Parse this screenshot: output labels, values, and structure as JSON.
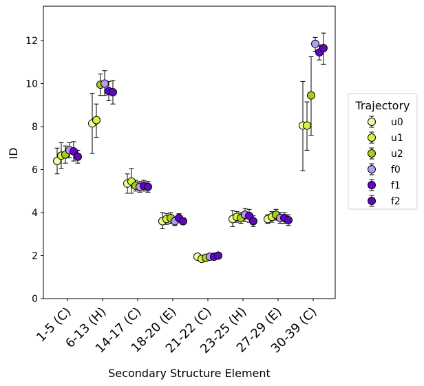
{
  "chart_data": {
    "type": "scatter",
    "title": "",
    "xlabel": "Secondary Structure Element",
    "ylabel": "ID",
    "ylim": [
      0,
      13.6
    ],
    "yticks": [
      0,
      2,
      4,
      6,
      8,
      10,
      12
    ],
    "categories": [
      "1-5 (C)",
      "6-13 (H)",
      "14-17 (C)",
      "18-20 (E)",
      "21-22 (C)",
      "23-25 (H)",
      "27-29 (E)",
      "30-39 (C)"
    ],
    "legend": {
      "title": "Trajectory",
      "placement": "outside-right"
    },
    "series": [
      {
        "name": "u0",
        "color": "#f2fca8",
        "values": [
          6.4,
          8.15,
          5.35,
          3.6,
          1.95,
          3.7,
          3.7,
          8.05
        ],
        "errors": [
          [
            5.8,
            7.0
          ],
          [
            6.75,
            9.55
          ],
          [
            4.9,
            5.8
          ],
          [
            3.25,
            4.0
          ],
          [
            1.85,
            2.05
          ],
          [
            3.35,
            4.1
          ],
          [
            3.5,
            3.9
          ],
          [
            5.95,
            10.1
          ]
        ]
      },
      {
        "name": "u1",
        "color": "#d4f53a",
        "values": [
          6.65,
          8.3,
          5.45,
          3.7,
          1.85,
          3.8,
          3.8,
          8.05
        ],
        "errors": [
          [
            6.05,
            7.25
          ],
          [
            7.5,
            9.05
          ],
          [
            4.9,
            6.05
          ],
          [
            3.45,
            3.95
          ],
          [
            1.75,
            1.95
          ],
          [
            3.55,
            4.05
          ],
          [
            3.55,
            4.05
          ],
          [
            6.9,
            9.15
          ]
        ]
      },
      {
        "name": "u2",
        "color": "#a8cc1a",
        "values": [
          6.7,
          9.95,
          5.25,
          3.75,
          1.9,
          3.75,
          3.9,
          9.45
        ],
        "errors": [
          [
            6.3,
            7.1
          ],
          [
            9.45,
            10.45
          ],
          [
            5.0,
            5.5
          ],
          [
            3.5,
            4.0
          ],
          [
            1.8,
            2.0
          ],
          [
            3.5,
            4.0
          ],
          [
            3.65,
            4.15
          ],
          [
            7.6,
            11.25
          ]
        ]
      },
      {
        "name": "f0",
        "color": "#b69af0",
        "values": [
          6.9,
          10.0,
          5.2,
          3.6,
          1.95,
          3.9,
          3.75,
          11.85
        ],
        "errors": [
          [
            6.55,
            7.25
          ],
          [
            9.45,
            10.6
          ],
          [
            4.95,
            5.45
          ],
          [
            3.4,
            3.8
          ],
          [
            1.85,
            2.05
          ],
          [
            3.6,
            4.2
          ],
          [
            3.5,
            4.0
          ],
          [
            11.5,
            12.15
          ]
        ]
      },
      {
        "name": "f1",
        "color": "#6600d6",
        "values": [
          6.85,
          9.65,
          5.25,
          3.75,
          1.95,
          3.85,
          3.75,
          11.45
        ],
        "errors": [
          [
            6.4,
            7.3
          ],
          [
            9.2,
            10.1
          ],
          [
            5.0,
            5.5
          ],
          [
            3.55,
            3.95
          ],
          [
            1.85,
            2.05
          ],
          [
            3.55,
            4.15
          ],
          [
            3.5,
            4.0
          ],
          [
            11.1,
            11.8
          ]
        ]
      },
      {
        "name": "f2",
        "color": "#5c0ab8",
        "values": [
          6.6,
          9.6,
          5.2,
          3.6,
          2.0,
          3.6,
          3.65,
          11.65
        ],
        "errors": [
          [
            6.3,
            6.9
          ],
          [
            9.05,
            10.15
          ],
          [
            4.95,
            5.45
          ],
          [
            3.45,
            3.75
          ],
          [
            1.9,
            2.1
          ],
          [
            3.35,
            3.85
          ],
          [
            3.4,
            3.9
          ],
          [
            10.9,
            12.35
          ]
        ]
      }
    ]
  }
}
